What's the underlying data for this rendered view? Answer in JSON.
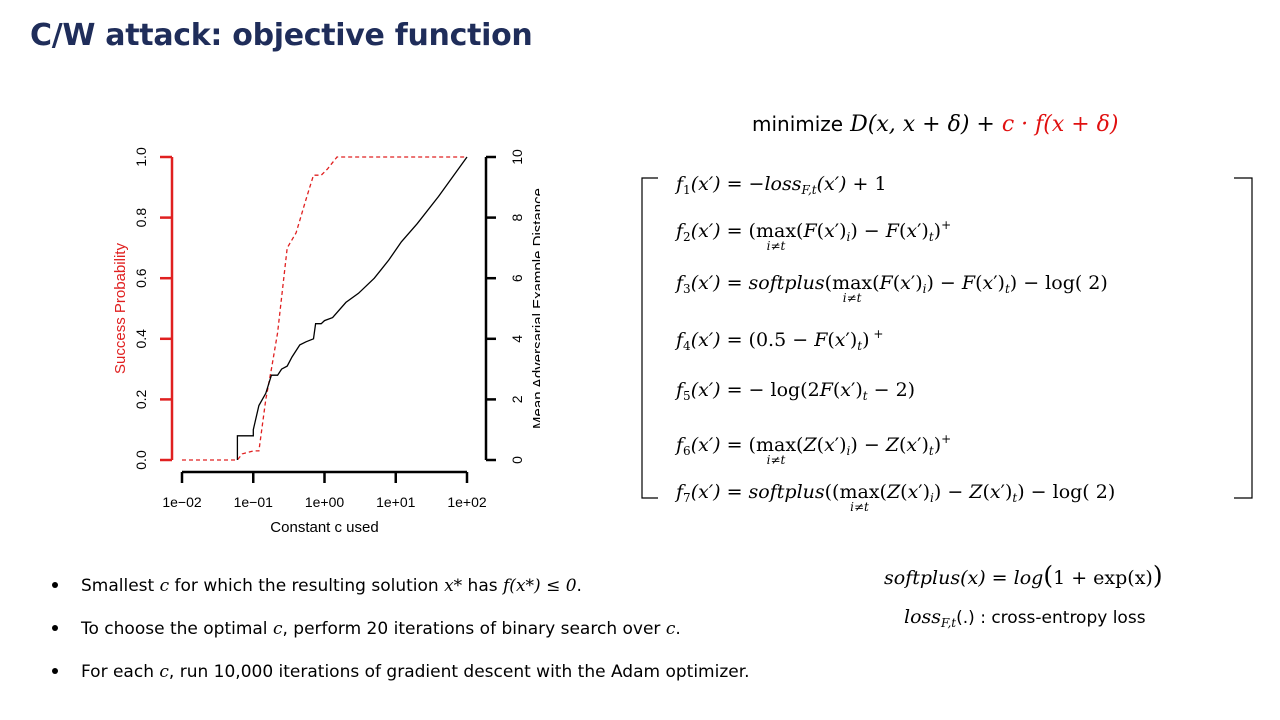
{
  "slide": {
    "title": "C/W attack: objective function"
  },
  "objective": {
    "minimize_word": "minimize",
    "distance_term": "D(x, x + δ) +",
    "penalty_term": "c · f(x + δ)"
  },
  "functions": [
    {
      "lhs": "f",
      "index": "1",
      "arg": "(x′) =",
      "rhs": "−loss"
    },
    {
      "lhs": "f",
      "index": "2",
      "arg": "(x′) ="
    },
    {
      "lhs": "f",
      "index": "3",
      "arg": "(x′) ="
    },
    {
      "lhs": "f",
      "index": "4",
      "arg": "(x′) ="
    },
    {
      "lhs": "f",
      "index": "5",
      "arg": "(x′) ="
    },
    {
      "lhs": "f",
      "index": "6",
      "arg": "(x′) ="
    },
    {
      "lhs": "f",
      "index": "7",
      "arg": "(x′) ="
    }
  ],
  "definitions": {
    "softplus_lhs": "softplus(x) = log",
    "softplus_rhs": "1 + exp(x)",
    "loss_lhs": "loss",
    "loss_sub": "F,t",
    "loss_rest": "(.) : cross-entropy loss"
  },
  "bullets": [
    {
      "parts": [
        "Smallest ",
        "c",
        " for which the resulting solution ",
        "x*",
        " has ",
        "f(x*) ≤ 0",
        "."
      ]
    },
    {
      "parts": [
        "To choose the optimal ",
        "c",
        ", perform 20 iterations of binary search over ",
        "c",
        "."
      ]
    },
    {
      "parts": [
        "For each ",
        "c",
        ", run 10,000 iterations of gradient descent with the Adam optimizer."
      ]
    }
  ],
  "chart_data": {
    "type": "line",
    "xlabel": "Constant c used",
    "ylabel_left": "Success Probability",
    "ylabel_right": "Mean Adversarial Example Distance",
    "x_scale": "log",
    "x_ticks": [
      "1e−02",
      "1e−01",
      "1e+00",
      "1e+01",
      "1e+02"
    ],
    "x_tick_values": [
      0.01,
      0.1,
      1,
      10,
      100
    ],
    "y_left_ticks": [
      "0.0",
      "0.2",
      "0.4",
      "0.6",
      "0.8",
      "1.0"
    ],
    "y_left_tick_values": [
      0,
      0.2,
      0.4,
      0.6,
      0.8,
      1.0
    ],
    "y_right_ticks": [
      "0",
      "2",
      "4",
      "6",
      "8",
      "10"
    ],
    "y_right_tick_values": [
      0,
      2,
      4,
      6,
      8,
      10
    ],
    "ylim_left": [
      0,
      1
    ],
    "ylim_right": [
      0,
      10
    ],
    "series": [
      {
        "axis": "left",
        "style": "dashed",
        "color": "#e02020",
        "x": [
          0.01,
          0.06,
          0.07,
          0.1,
          0.12,
          0.15,
          0.18,
          0.22,
          0.3,
          0.4,
          0.55,
          0.7,
          0.9,
          1.1,
          1.5,
          2,
          5,
          20,
          100
        ],
        "y": [
          0.0,
          0.0,
          0.02,
          0.03,
          0.03,
          0.2,
          0.3,
          0.42,
          0.7,
          0.75,
          0.86,
          0.94,
          0.94,
          0.96,
          1.0,
          1.0,
          1.0,
          1.0,
          1.0
        ]
      },
      {
        "axis": "right",
        "style": "solid",
        "color": "#000000",
        "x": [
          0.06,
          0.06,
          0.1,
          0.1,
          0.12,
          0.15,
          0.18,
          0.22,
          0.25,
          0.3,
          0.35,
          0.45,
          0.55,
          0.7,
          0.75,
          0.9,
          1.0,
          1.3,
          2,
          3,
          5,
          8,
          12,
          20,
          40,
          100
        ],
        "y": [
          0.0,
          0.8,
          0.8,
          1.0,
          1.8,
          2.2,
          2.8,
          2.8,
          3.0,
          3.1,
          3.4,
          3.8,
          3.9,
          4.0,
          4.5,
          4.5,
          4.6,
          4.7,
          5.2,
          5.5,
          6.0,
          6.6,
          7.2,
          7.8,
          8.7,
          10.0
        ]
      }
    ]
  }
}
